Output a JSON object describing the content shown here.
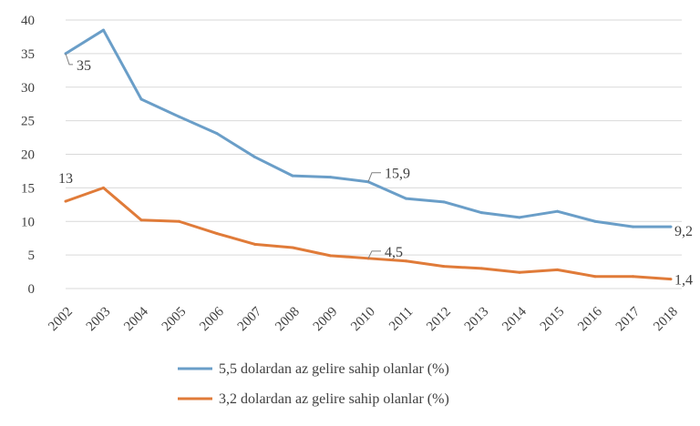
{
  "chart_data": {
    "type": "line",
    "categories": [
      "2002",
      "2003",
      "2004",
      "2005",
      "2006",
      "2007",
      "2008",
      "2009",
      "2010",
      "2011",
      "2012",
      "2013",
      "2014",
      "2015",
      "2016",
      "2017",
      "2018"
    ],
    "ylim": [
      0,
      40
    ],
    "yticks": [
      0,
      5,
      10,
      15,
      20,
      25,
      30,
      35,
      40
    ],
    "grid": true,
    "legend": "bottom",
    "series": [
      {
        "name": "5,5 dolardan az gelire sahip olanlar (%)",
        "color": "#6a9ec8",
        "values": [
          35,
          38.5,
          28.2,
          25.6,
          23.1,
          19.6,
          16.8,
          16.6,
          15.9,
          13.4,
          12.9,
          11.3,
          10.6,
          11.5,
          10,
          9.2,
          9.2
        ],
        "annotations": [
          {
            "index": 0,
            "text": "35"
          },
          {
            "index": 8,
            "text": "15,9"
          },
          {
            "index": 16,
            "text": "9,2"
          }
        ]
      },
      {
        "name": "3,2 dolardan az gelire sahip olanlar (%)",
        "color": "#e07b39",
        "values": [
          13,
          15,
          10.2,
          10,
          8.2,
          6.6,
          6.1,
          4.9,
          4.5,
          4.1,
          3.3,
          3,
          2.4,
          2.8,
          1.8,
          1.8,
          1.4
        ],
        "annotations": [
          {
            "index": 0,
            "text": "13"
          },
          {
            "index": 8,
            "text": "4,5"
          },
          {
            "index": 16,
            "text": "1,4"
          }
        ]
      }
    ]
  }
}
